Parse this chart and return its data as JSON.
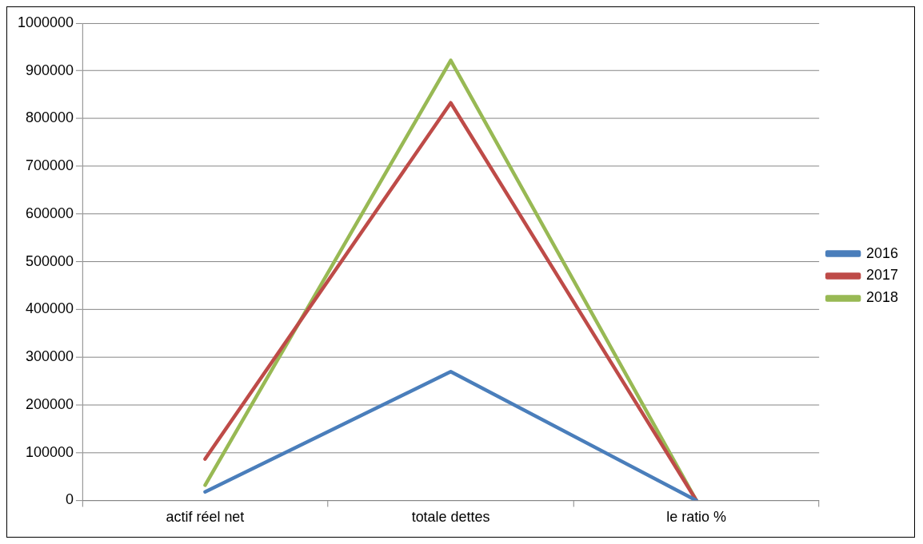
{
  "chart_data": {
    "type": "line",
    "categories": [
      "actif réel net",
      "totale dettes",
      "le ratio %"
    ],
    "series": [
      {
        "name": "2016",
        "color": "#4a7ebb",
        "values": [
          18000,
          270000,
          0
        ]
      },
      {
        "name": "2017",
        "color": "#be4b48",
        "values": [
          87000,
          833000,
          0
        ]
      },
      {
        "name": "2018",
        "color": "#98b954",
        "values": [
          32000,
          922000,
          0
        ]
      }
    ],
    "ylim": [
      0,
      1000000
    ],
    "yticks": [
      0,
      100000,
      200000,
      300000,
      400000,
      500000,
      600000,
      700000,
      800000,
      900000,
      1000000
    ],
    "grid": "y",
    "legend": "right",
    "marker": "none",
    "line_style": "solid"
  }
}
